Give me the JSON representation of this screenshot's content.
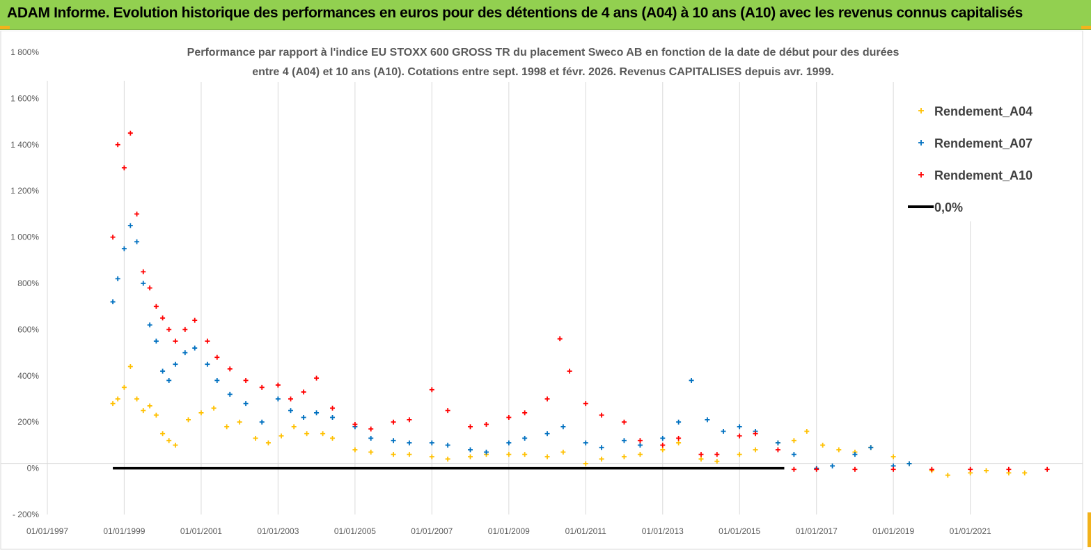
{
  "banner": {
    "title": "ADAM Informe. Evolution historique des performances en euros pour des détentions de 4 ans (A04) à 10 ans (A10) avec les revenus connus capitalisés"
  },
  "colors": {
    "banner_bg": "#92d050",
    "corner_accent": "#f2b21b",
    "series_A04": "#ffc000",
    "series_A07": "#0070c0",
    "series_A10": "#ff0000",
    "zero_line": "#000000"
  },
  "chart_data": {
    "type": "scatter",
    "title_lines": [
      "Performance par rapport à l'indice EU STOXX 600 GROSS TR  du placement Sweco AB en fonction de la date de début pour des durées",
      "entre 4 (A04) et 10 ans (A10). Cotations entre sept. 1998 et févr. 2026. Revenus CAPITALISES depuis avr. 1999."
    ],
    "x_tick_labels": [
      "01/01/1997",
      "01/01/1999",
      "01/01/2001",
      "01/01/2003",
      "01/01/2005",
      "01/01/2007",
      "01/01/2009",
      "01/01/2011",
      "01/01/2013",
      "01/01/2015",
      "01/01/2017",
      "01/01/2019",
      "01/01/2021"
    ],
    "x_range": [
      "1997-01-01",
      "2023-03-01"
    ],
    "y_tick_labels": [
      "- 200%",
      "0%",
      "200%",
      "400%",
      "600%",
      "800%",
      "1 000%",
      "1 200%",
      "1 400%",
      "1 600%",
      "1 800%"
    ],
    "y_range": [
      -200,
      1800
    ],
    "grid": "vertical",
    "legend_position": "top-right",
    "marker": "+",
    "series": [
      {
        "name": "Rendement_A04",
        "color": "#ffc000",
        "x": [
          "1998-09-15",
          "1998-11-01",
          "1999-01-01",
          "1999-03-01",
          "1999-05-01",
          "1999-07-01",
          "1999-09-01",
          "1999-11-01",
          "2000-01-01",
          "2000-03-01",
          "2000-05-01",
          "2000-09-01",
          "2001-01-01",
          "2001-05-01",
          "2001-09-01",
          "2002-01-01",
          "2002-06-01",
          "2002-10-01",
          "2003-02-01",
          "2003-06-01",
          "2003-10-01",
          "2004-03-01",
          "2004-06-01",
          "2005-01-01",
          "2005-06-01",
          "2006-01-01",
          "2006-06-01",
          "2007-01-01",
          "2007-06-01",
          "2008-01-01",
          "2008-06-01",
          "2009-01-01",
          "2009-06-01",
          "2010-01-01",
          "2010-06-01",
          "2011-01-01",
          "2011-06-01",
          "2012-01-01",
          "2012-06-01",
          "2013-01-01",
          "2013-06-01",
          "2014-01-01",
          "2014-06-01",
          "2015-01-01",
          "2015-06-01",
          "2016-01-01",
          "2016-06-01",
          "2016-10-01",
          "2017-03-01",
          "2017-08-01",
          "2018-01-01",
          "2018-06-01",
          "2019-01-01",
          "2019-06-01",
          "2020-01-01",
          "2020-06-01",
          "2021-01-01",
          "2021-06-01",
          "2022-01-01",
          "2022-06-01"
        ],
        "y": [
          280,
          300,
          350,
          440,
          300,
          250,
          270,
          230,
          150,
          120,
          100,
          210,
          240,
          260,
          180,
          200,
          130,
          110,
          140,
          180,
          150,
          150,
          130,
          80,
          70,
          60,
          60,
          50,
          40,
          50,
          60,
          60,
          60,
          50,
          70,
          20,
          40,
          50,
          60,
          80,
          110,
          40,
          30,
          60,
          80,
          110,
          120,
          160,
          100,
          80,
          70,
          90,
          50,
          20,
          -10,
          -30,
          -20,
          -10,
          -20,
          -20
        ]
      },
      {
        "name": "Rendement_A07",
        "color": "#0070c0",
        "x": [
          "1998-09-15",
          "1998-11-01",
          "1999-01-01",
          "1999-03-01",
          "1999-05-01",
          "1999-07-01",
          "1999-09-01",
          "1999-11-01",
          "2000-01-01",
          "2000-03-01",
          "2000-05-01",
          "2000-08-01",
          "2000-11-01",
          "2001-03-01",
          "2001-06-01",
          "2001-10-01",
          "2002-03-01",
          "2002-08-01",
          "2003-01-01",
          "2003-05-01",
          "2003-09-01",
          "2004-01-01",
          "2004-06-01",
          "2005-01-01",
          "2005-06-01",
          "2006-01-01",
          "2006-06-01",
          "2007-01-01",
          "2007-06-01",
          "2008-01-01",
          "2008-06-01",
          "2009-01-01",
          "2009-06-01",
          "2010-01-01",
          "2010-06-01",
          "2011-01-01",
          "2011-06-01",
          "2012-01-01",
          "2012-06-01",
          "2013-01-01",
          "2013-06-01",
          "2013-10-01",
          "2014-03-01",
          "2014-08-01",
          "2015-01-01",
          "2015-06-01",
          "2016-01-01",
          "2016-06-01",
          "2017-01-01",
          "2017-06-01",
          "2018-01-01",
          "2018-06-01",
          "2019-01-01",
          "2019-06-01"
        ],
        "y": [
          720,
          820,
          950,
          1050,
          980,
          800,
          620,
          550,
          420,
          380,
          450,
          500,
          520,
          450,
          380,
          320,
          280,
          200,
          300,
          250,
          220,
          240,
          220,
          180,
          130,
          120,
          110,
          110,
          100,
          80,
          70,
          110,
          130,
          150,
          180,
          110,
          90,
          120,
          100,
          130,
          200,
          380,
          210,
          160,
          180,
          160,
          110,
          60,
          0,
          10,
          60,
          90,
          10,
          20
        ]
      },
      {
        "name": "Rendement_A10",
        "color": "#ff0000",
        "x": [
          "1998-09-15",
          "1998-11-01",
          "1999-01-01",
          "1999-03-01",
          "1999-05-01",
          "1999-07-01",
          "1999-09-01",
          "1999-11-01",
          "2000-01-01",
          "2000-03-01",
          "2000-05-01",
          "2000-08-01",
          "2000-11-01",
          "2001-03-01",
          "2001-06-01",
          "2001-10-01",
          "2002-03-01",
          "2002-08-01",
          "2003-01-01",
          "2003-05-01",
          "2003-09-01",
          "2004-01-01",
          "2004-06-01",
          "2005-01-01",
          "2005-06-01",
          "2006-01-01",
          "2006-06-01",
          "2007-01-01",
          "2007-06-01",
          "2008-01-01",
          "2008-06-01",
          "2009-01-01",
          "2009-06-01",
          "2010-01-01",
          "2010-05-01",
          "2010-08-01",
          "2011-01-01",
          "2011-06-01",
          "2012-01-01",
          "2012-06-01",
          "2013-01-01",
          "2013-06-01",
          "2014-01-01",
          "2014-06-01",
          "2015-01-01",
          "2015-06-01",
          "2016-01-01",
          "2016-06-01",
          "2017-01-01",
          "2018-01-01",
          "2019-01-01",
          "2020-01-01",
          "2021-01-01",
          "2022-01-01",
          "2023-01-01"
        ],
        "y": [
          1000,
          1400,
          1300,
          1450,
          1100,
          850,
          780,
          700,
          650,
          600,
          550,
          600,
          640,
          550,
          480,
          430,
          380,
          350,
          360,
          300,
          330,
          390,
          260,
          190,
          170,
          200,
          210,
          340,
          250,
          180,
          190,
          220,
          240,
          300,
          560,
          420,
          280,
          230,
          200,
          120,
          100,
          130,
          60,
          60,
          140,
          150,
          80,
          -5,
          -5,
          -5,
          -5,
          -5,
          -5,
          -5,
          -5
        ]
      },
      {
        "name": "0,0%",
        "color": "#000000",
        "x": [
          "1998-09-15",
          "2016-03-01"
        ],
        "y": [
          0,
          0
        ]
      }
    ]
  }
}
